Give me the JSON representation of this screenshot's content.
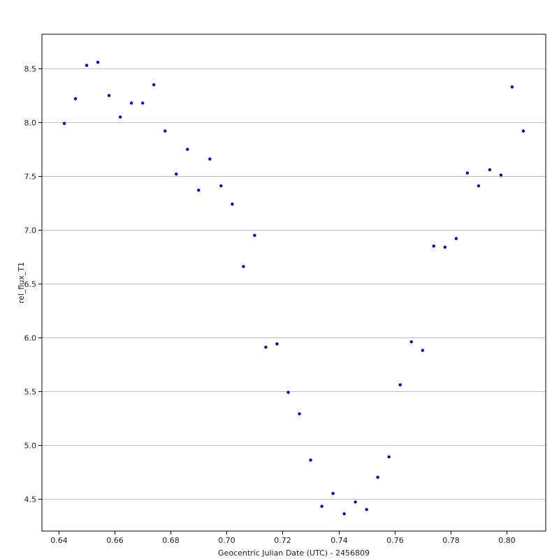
{
  "chart_data": {
    "type": "scatter",
    "title": "",
    "xlabel": "Geocentric Julian Date (UTC) - 2456809",
    "ylabel": "rel_flux_T1",
    "xlim": [
      0.634,
      0.814
    ],
    "ylim": [
      4.2,
      8.82
    ],
    "grid": "horizontal",
    "x_ticks": [
      0.64,
      0.66,
      0.68,
      0.7,
      0.72,
      0.74,
      0.76,
      0.78,
      0.8
    ],
    "x_tick_labels": [
      "0.64",
      "0.66",
      "0.68",
      "0.70",
      "0.72",
      "0.74",
      "0.76",
      "0.78",
      "0.80"
    ],
    "y_ticks": [
      4.5,
      5.0,
      5.5,
      6.0,
      6.5,
      7.0,
      7.5,
      8.0,
      8.5
    ],
    "y_tick_labels": [
      "4.5",
      "5.0",
      "5.5",
      "6.0",
      "6.5",
      "7.0",
      "7.5",
      "8.0",
      "8.5"
    ],
    "marker_color": "#0000cc",
    "series": [
      {
        "x": [
          0.642,
          0.646,
          0.65,
          0.654,
          0.658,
          0.662,
          0.666,
          0.67,
          0.674,
          0.678,
          0.682,
          0.686,
          0.69,
          0.694,
          0.698,
          0.702,
          0.706,
          0.71,
          0.714,
          0.718,
          0.722,
          0.726,
          0.73,
          0.734,
          0.738,
          0.742,
          0.746,
          0.75,
          0.754,
          0.758,
          0.762,
          0.766,
          0.77,
          0.774,
          0.778,
          0.782,
          0.786,
          0.79,
          0.794,
          0.798,
          0.802,
          0.806
        ],
        "y": [
          7.99,
          8.22,
          8.53,
          8.56,
          8.25,
          8.05,
          8.18,
          8.18,
          8.35,
          7.92,
          7.52,
          7.75,
          7.37,
          7.66,
          7.41,
          7.24,
          6.66,
          6.95,
          5.91,
          5.94,
          5.49,
          5.29,
          4.86,
          4.43,
          4.55,
          4.36,
          4.47,
          4.4,
          4.7,
          4.89,
          5.56,
          5.96,
          5.88,
          6.85,
          6.84,
          6.92,
          7.53,
          7.41,
          7.56,
          7.51,
          8.33,
          7.92
        ]
      }
    ]
  }
}
